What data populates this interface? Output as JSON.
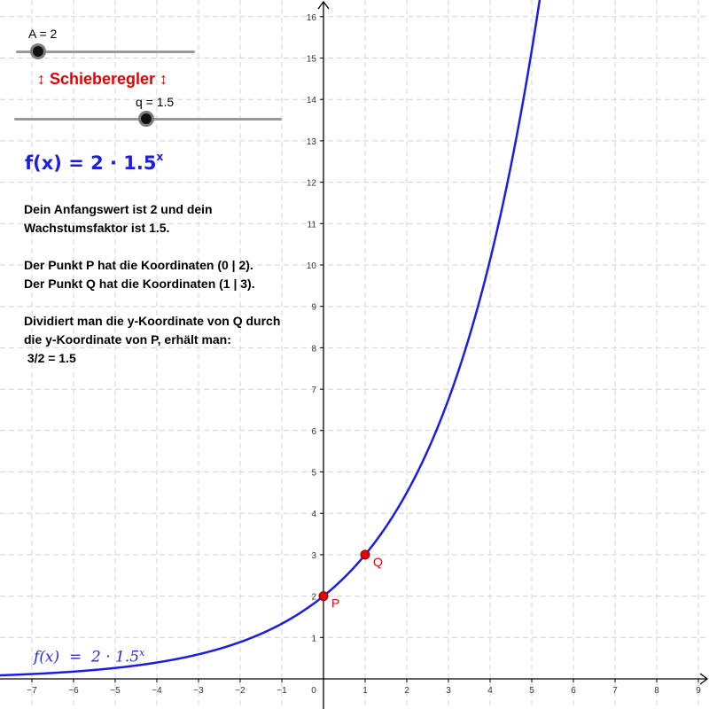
{
  "sliders": {
    "a": {
      "label": "A = 2",
      "name": "A",
      "value": 2
    },
    "q": {
      "label": "q = 1.5",
      "name": "q",
      "value": 1.5
    }
  },
  "slider_caption": "↕ Schieberegler ↕",
  "function_display": {
    "prefix": "f(x) = 2 · 1.5",
    "exponent": "x"
  },
  "info_text": {
    "line1": "Dein Anfangswert ist 2 und dein",
    "line2": "Wachstumsfaktor ist 1.5.",
    "line3": "Der Punkt P hat die Koordinaten (0 | 2).",
    "line4": "Der Punkt Q hat die Koordinaten (1 | 3).",
    "line5": "Dividiert man die y-Koordinate von Q durch",
    "line6": "die y-Koordinate von P, erhält man:",
    "line7": " 3/2 = 1.5"
  },
  "graph_label": {
    "prefix": "f(x)  =  2 · 1.5",
    "exponent": "x"
  },
  "colors": {
    "curve": "#1c1ce3",
    "points": "#e50000",
    "axes": "#000000",
    "grid": "#d4d4d4"
  },
  "chart_data": {
    "type": "line",
    "function": "f(x) = 2 · 1.5^x",
    "A": 2,
    "q": 1.5,
    "xlim": [
      -7.8,
      9.3
    ],
    "ylim": [
      -0.8,
      16.4
    ],
    "x_ticks": [
      "−7",
      "−6",
      "−5",
      "−4",
      "−3",
      "−2",
      "−1",
      "0",
      "1",
      "2",
      "3",
      "4",
      "5",
      "6",
      "7",
      "8",
      "9"
    ],
    "y_ticks": [
      "1",
      "2",
      "3",
      "4",
      "5",
      "6",
      "7",
      "8",
      "9",
      "10",
      "11",
      "12",
      "13",
      "14",
      "15",
      "16"
    ],
    "grid": true,
    "points": [
      {
        "name": "P",
        "x": 0,
        "y": 2
      },
      {
        "name": "Q",
        "x": 1,
        "y": 3
      }
    ]
  }
}
